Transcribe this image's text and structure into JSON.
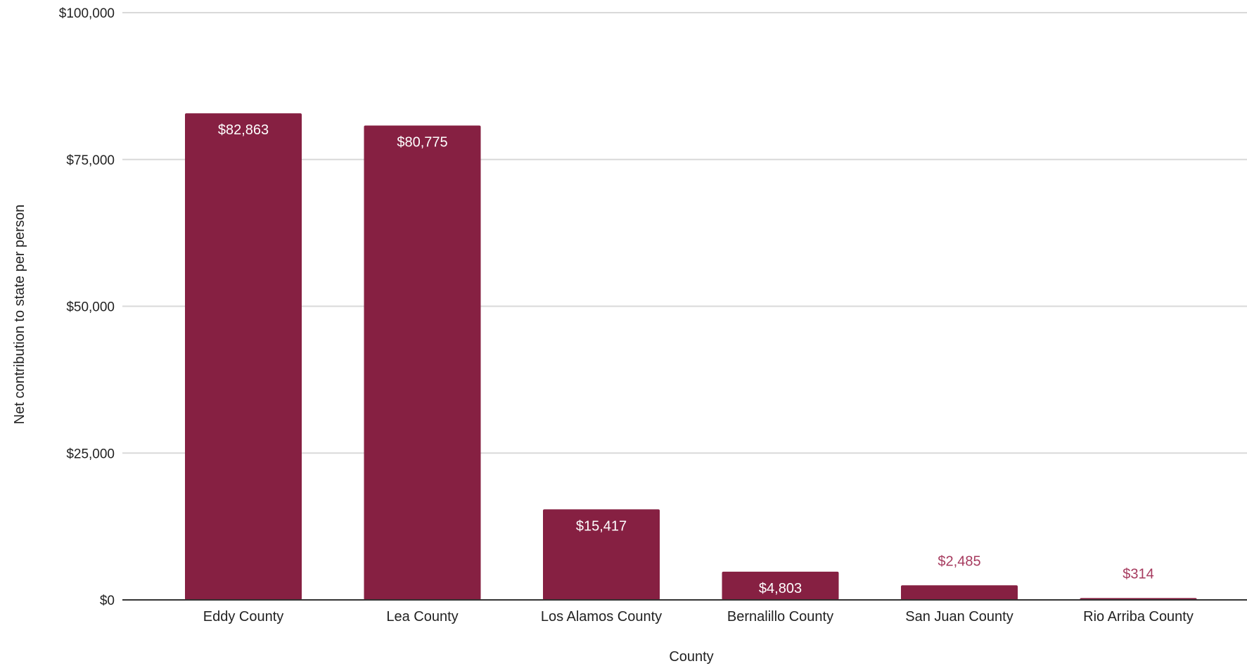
{
  "chart_data": {
    "type": "bar",
    "title": "",
    "xlabel": "County",
    "ylabel": "Net contribution to state per person",
    "categories": [
      "Eddy County",
      "Lea County",
      "Los Alamos County",
      "Bernalillo County",
      "San Juan County",
      "Rio Arriba County"
    ],
    "values": [
      82863,
      80775,
      15417,
      4803,
      2485,
      314
    ],
    "data_labels": [
      "$82,863",
      "$80,775",
      "$15,417",
      "$4,803",
      "$2,485",
      "$314"
    ],
    "ylim": [
      0,
      100000
    ],
    "yticks": [
      0,
      25000,
      50000,
      75000,
      100000
    ],
    "ytick_labels": [
      "$0",
      "$25,000",
      "$50,000",
      "$75,000",
      "$100,000"
    ],
    "grid": true,
    "legend": "none",
    "colors": {
      "bar": "#862042",
      "label_inside": "#ffffff",
      "label_outside": "#a63a5e",
      "gridline": "#d9d9d9",
      "baseline": "#333333"
    }
  }
}
